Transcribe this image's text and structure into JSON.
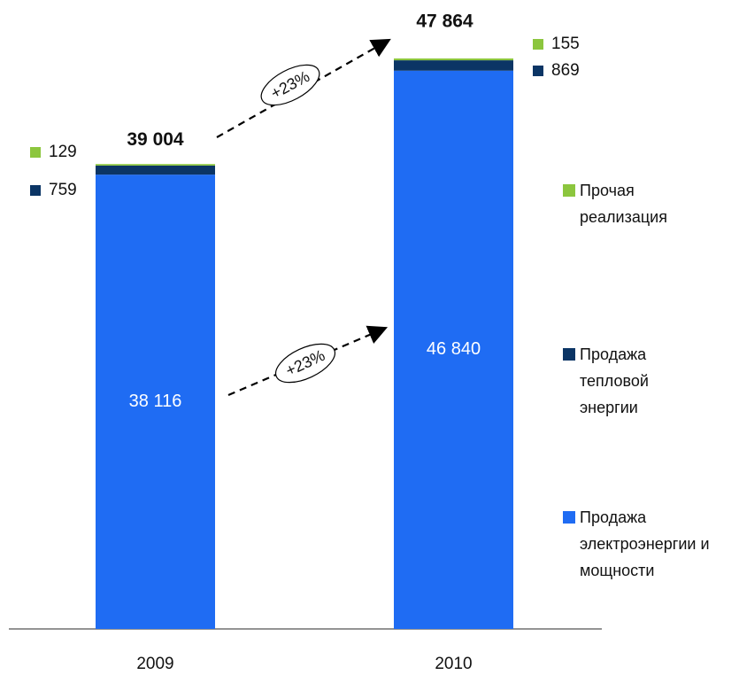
{
  "chart_data": {
    "type": "stacked_bar",
    "categories": [
      "2009",
      "2010"
    ],
    "series": [
      {
        "name": "Продажа электроэнергии и мощности",
        "color": "#1f6cf3",
        "values": [
          38116,
          46840
        ],
        "value_labels": [
          "38 116",
          "46 840"
        ]
      },
      {
        "name": "Продажа тепловой энергии",
        "color": "#0b3565",
        "values": [
          759,
          869
        ],
        "value_labels": [
          "759",
          "869"
        ]
      },
      {
        "name": "Прочая реализация",
        "color": "#8cc63e",
        "values": [
          129,
          155
        ],
        "value_labels": [
          "129",
          "155"
        ]
      }
    ],
    "totals": {
      "values": [
        39004,
        47864
      ],
      "value_labels": [
        "39 004",
        "47 864"
      ]
    },
    "annotations": [
      "+23%",
      "+23%"
    ]
  }
}
